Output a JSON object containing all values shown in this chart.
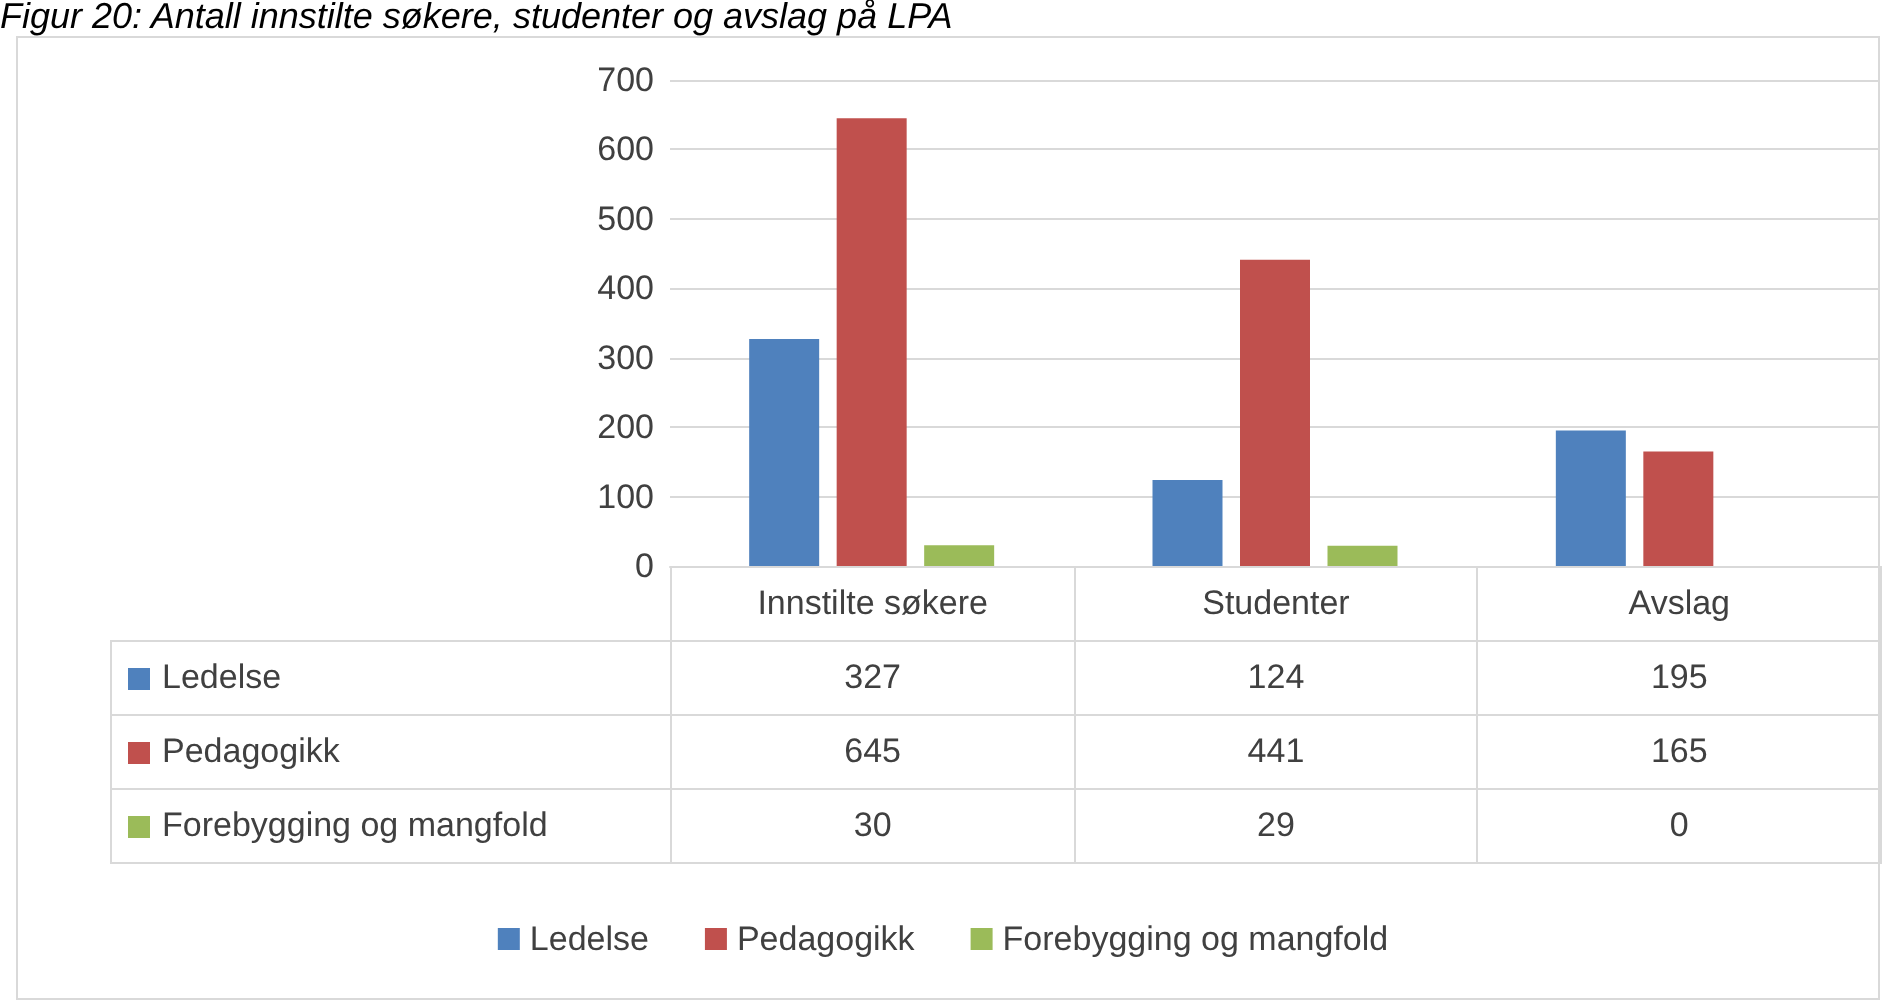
{
  "chart_data": {
    "type": "bar",
    "title": "Figur 20: Antall innstilte søkere, studenter og avslag på LPA",
    "categories": [
      "Innstilte søkere",
      "Studenter",
      "Avslag"
    ],
    "series": [
      {
        "name": "Ledelse",
        "color": "#4f81bd",
        "values": [
          327,
          124,
          195
        ]
      },
      {
        "name": "Pedagogikk",
        "color": "#c0504d",
        "values": [
          645,
          441,
          165
        ]
      },
      {
        "name": "Forebygging og mangfold",
        "color": "#9bbb59",
        "values": [
          30,
          29,
          0
        ]
      }
    ],
    "ylim": [
      0,
      700
    ],
    "yticks": [
      0,
      100,
      200,
      300,
      400,
      500,
      600,
      700
    ],
    "grid": "y",
    "legend": "bottom",
    "data_labels": true
  }
}
